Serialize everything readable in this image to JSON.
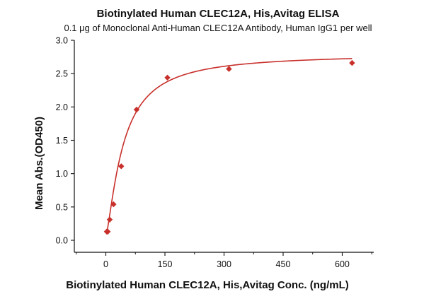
{
  "chart_data": {
    "type": "scatter",
    "title": "Biotinylated Human CLEC12A, His,Avitag ELISA",
    "subtitle": "0.1 μg of Monoclonal Anti-Human CLEC12A Antibody, Human IgG1 per well",
    "xlabel": "Biotinylated Human CLEC12A, His,Avitag Conc. (ng/mL)",
    "ylabel": "Mean Abs.(OD450)",
    "xlim": [
      -80,
      680
    ],
    "ylim": [
      -0.18,
      3.0
    ],
    "xticks": [
      0,
      150,
      300,
      450,
      600
    ],
    "xtick_labels": [
      "0",
      "150",
      "300",
      "450",
      "600"
    ],
    "yticks": [
      0.0,
      0.5,
      1.0,
      1.5,
      2.0,
      2.5,
      3.0
    ],
    "ytick_labels": [
      "0.0",
      "0.5",
      "1.0",
      "1.5",
      "2.0",
      "2.5",
      "3.0"
    ],
    "grid": false,
    "legend": "none",
    "series": [
      {
        "marker": "diamond",
        "color": "#c8302b",
        "x": [
          2.44,
          4.88,
          9.77,
          19.5,
          39.1,
          78.1,
          156.3,
          312.5,
          625
        ],
        "y": [
          0.13,
          0.13,
          0.31,
          0.54,
          1.11,
          1.96,
          2.44,
          2.57,
          2.66
        ]
      }
    ],
    "fit_curve": {
      "color": "#c8302b",
      "model": "4PL",
      "bottom": 0.06,
      "top": 2.8,
      "ec50": 44,
      "hill": 1.35
    }
  }
}
